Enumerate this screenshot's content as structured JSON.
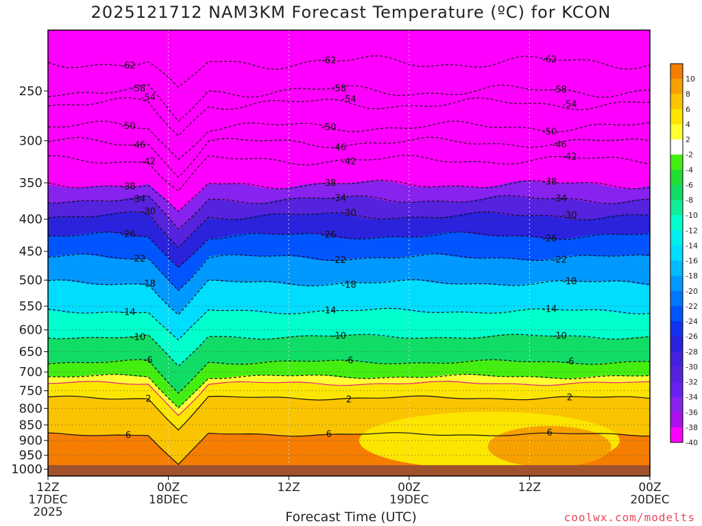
{
  "title": "2025121712 NAM3KM Forecast Temperature (ºC) for KCON",
  "credit": "coolwx.com/modelts",
  "chart_data": {
    "type": "heatmap",
    "title": "2025121712 NAM3KM Forecast Temperature (ºC) for KCON",
    "xlabel": "Forecast Time (UTC)",
    "ylabel": "",
    "x_ticks": [
      {
        "hour": 0,
        "label1": "12Z",
        "label2": "17DEC",
        "label3": "2025"
      },
      {
        "hour": 12,
        "label1": "00Z",
        "label2": "18DEC",
        "label3": ""
      },
      {
        "hour": 24,
        "label1": "12Z",
        "label2": "",
        "label3": ""
      },
      {
        "hour": 36,
        "label1": "00Z",
        "label2": "19DEC",
        "label3": ""
      },
      {
        "hour": 48,
        "label1": "12Z",
        "label2": "",
        "label3": ""
      },
      {
        "hour": 60,
        "label1": "00Z",
        "label2": "20DEC",
        "label3": ""
      }
    ],
    "xlim_hours": [
      0,
      60
    ],
    "y_ticks": [
      250,
      300,
      350,
      400,
      450,
      500,
      550,
      600,
      650,
      700,
      750,
      800,
      850,
      900,
      950,
      1000
    ],
    "ylim": [
      200,
      1025
    ],
    "yscale": "log",
    "surface_pressure_hpa": 985,
    "colorbar": {
      "position": "right",
      "labels": [
        "10",
        "8",
        "6",
        "4",
        "2",
        "-2",
        "-4",
        "-6",
        "-8",
        "-10",
        "-12",
        "-14",
        "-16",
        "-18",
        "-20",
        "-22",
        "-24",
        "-26",
        "-28",
        "-30",
        "-32",
        "-34",
        "-36",
        "-38",
        "-40"
      ],
      "colors": [
        "#f57d00",
        "#f7a100",
        "#fac400",
        "#fce600",
        "#ffff33",
        "#ffffff",
        "#44ee11",
        "#22dd33",
        "#11dd66",
        "#11ee99",
        "#00ffcc",
        "#00eeee",
        "#00ddff",
        "#00bbff",
        "#0099ff",
        "#0077ff",
        "#0055ff",
        "#1133ee",
        "#2a22dd",
        "#4422dd",
        "#5522dd",
        "#6622ee",
        "#8822ee",
        "#aa11ee",
        "#ff00ff"
      ]
    },
    "isotherms": [
      {
        "temp": -62,
        "label": "-62",
        "pressure": 225,
        "style": "dashed"
      },
      {
        "temp": -58,
        "label": "-58",
        "pressure": 250,
        "style": "dashed"
      },
      {
        "temp": -54,
        "label": "-54",
        "pressure": 262,
        "style": "dashed"
      },
      {
        "temp": -50,
        "label": "-50",
        "pressure": 285,
        "style": "dashed"
      },
      {
        "temp": -46,
        "label": "-46",
        "pressure": 302,
        "style": "dashed"
      },
      {
        "temp": -42,
        "label": "-42",
        "pressure": 322,
        "style": "dashed"
      },
      {
        "temp": -38,
        "label": "-38",
        "pressure": 352,
        "style": "dashed"
      },
      {
        "temp": -34,
        "label": "-34",
        "pressure": 372,
        "style": "dashed"
      },
      {
        "temp": -30,
        "label": "-30",
        "pressure": 395,
        "style": "dashed"
      },
      {
        "temp": -26,
        "label": "-26",
        "pressure": 425,
        "style": "dashed"
      },
      {
        "temp": -22,
        "label": "-22",
        "pressure": 460,
        "style": "dashed"
      },
      {
        "temp": -18,
        "label": "-18",
        "pressure": 505,
        "style": "dashed"
      },
      {
        "temp": -14,
        "label": "-14",
        "pressure": 560,
        "style": "dashed"
      },
      {
        "temp": -10,
        "label": "-10",
        "pressure": 615,
        "style": "dashed"
      },
      {
        "temp": -6,
        "label": "-6",
        "pressure": 675,
        "style": "dashed"
      },
      {
        "temp": -2,
        "label": "",
        "pressure": 712,
        "style": "dashed"
      },
      {
        "temp": 0,
        "label": "",
        "pressure": 730,
        "style": "solid-magenta"
      },
      {
        "temp": 2,
        "label": "2",
        "pressure": 770,
        "style": "solid"
      },
      {
        "temp": 6,
        "label": "6",
        "pressure": 880,
        "style": "solid"
      }
    ]
  }
}
